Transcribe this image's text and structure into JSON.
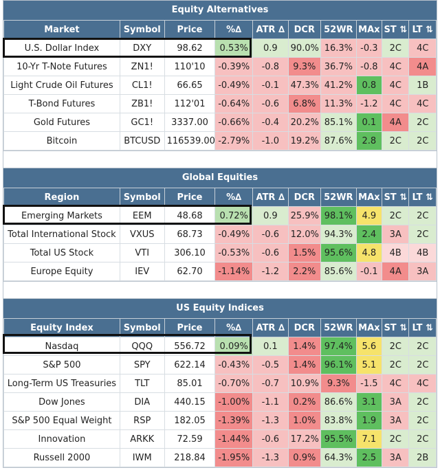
{
  "sections": [
    {
      "title": "Equity Alternatives",
      "headers": [
        "Market",
        "Symbol",
        "Price",
        "%∆",
        "ATR ∆",
        "DCR",
        "52WR",
        "MAx",
        "ST ⇅",
        "LT ⇅"
      ],
      "rows": [
        [
          [
            "U.S. Dollar Index",
            "n"
          ],
          [
            "DXY",
            "n"
          ],
          [
            "98.62",
            "n"
          ],
          [
            "0.53%",
            "g2"
          ],
          [
            "0.9",
            "g3"
          ],
          [
            "90.0%",
            "g3"
          ],
          [
            "16.3%",
            "r2"
          ],
          [
            "-0.3",
            "r2"
          ],
          [
            "2C",
            "g3"
          ],
          [
            "4C",
            "r2"
          ]
        ],
        [
          [
            "10-Yr T-Note Futures",
            "n"
          ],
          [
            "ZN1!",
            "n"
          ],
          [
            "110'10",
            "n"
          ],
          [
            "-0.39%",
            "r2"
          ],
          [
            "-0.8",
            "r2"
          ],
          [
            "9.3%",
            "r1"
          ],
          [
            "36.7%",
            "r2"
          ],
          [
            "-0.8",
            "r2"
          ],
          [
            "4C",
            "r2"
          ],
          [
            "4A",
            "r1"
          ]
        ],
        [
          [
            "Light Crude Oil Futures",
            "n"
          ],
          [
            "CL1!",
            "n"
          ],
          [
            "66.65",
            "n"
          ],
          [
            "-0.49%",
            "r2"
          ],
          [
            "-0.1",
            "r2"
          ],
          [
            "47.3%",
            "r2"
          ],
          [
            "41.2%",
            "r2"
          ],
          [
            "0.8",
            "g1"
          ],
          [
            "4C",
            "r2"
          ],
          [
            "1B",
            "g3"
          ]
        ],
        [
          [
            "T-Bond Futures",
            "n"
          ],
          [
            "ZB1!",
            "n"
          ],
          [
            "112'01",
            "n"
          ],
          [
            "-0.64%",
            "r2"
          ],
          [
            "-0.6",
            "r2"
          ],
          [
            "6.8%",
            "r1"
          ],
          [
            "11.3%",
            "r2"
          ],
          [
            "-1.2",
            "r2"
          ],
          [
            "4C",
            "r2"
          ],
          [
            "4C",
            "r2"
          ]
        ],
        [
          [
            "Gold Futures",
            "n"
          ],
          [
            "GC1!",
            "n"
          ],
          [
            "3337.00",
            "n"
          ],
          [
            "-0.66%",
            "r2"
          ],
          [
            "-0.4",
            "r2"
          ],
          [
            "20.2%",
            "r2"
          ],
          [
            "85.1%",
            "g3"
          ],
          [
            "0.1",
            "g1"
          ],
          [
            "4A",
            "r1"
          ],
          [
            "2C",
            "g3"
          ]
        ],
        [
          [
            "Bitcoin",
            "n"
          ],
          [
            "BTCUSD",
            "n"
          ],
          [
            "116539.00",
            "n"
          ],
          [
            "-2.79%",
            "r2"
          ],
          [
            "-1.0",
            "r2"
          ],
          [
            "19.2%",
            "r2"
          ],
          [
            "87.6%",
            "g3"
          ],
          [
            "2.8",
            "g1"
          ],
          [
            "2C",
            "g3"
          ],
          [
            "2C",
            "g3"
          ]
        ]
      ]
    },
    {
      "title": "Global Equities",
      "headers": [
        "Region",
        "Symbol",
        "Price",
        "%∆",
        "ATR ∆",
        "DCR",
        "52WR",
        "MAx",
        "ST ⇅",
        "LT ⇅"
      ],
      "rows": [
        [
          [
            "Emerging Markets",
            "n"
          ],
          [
            "EEM",
            "n"
          ],
          [
            "48.68",
            "n"
          ],
          [
            "0.72%",
            "g2"
          ],
          [
            "0.9",
            "g3"
          ],
          [
            "25.9%",
            "r2"
          ],
          [
            "98.1%",
            "g1"
          ],
          [
            "4.9",
            "y"
          ],
          [
            "2C",
            "g3"
          ],
          [
            "2C",
            "g3"
          ]
        ],
        [
          [
            "Total International Stock",
            "n"
          ],
          [
            "VXUS",
            "n"
          ],
          [
            "68.73",
            "n"
          ],
          [
            "-0.49%",
            "r2"
          ],
          [
            "-0.6",
            "r2"
          ],
          [
            "12.0%",
            "r2"
          ],
          [
            "94.3%",
            "g3"
          ],
          [
            "2.4",
            "g1"
          ],
          [
            "3A",
            "r2"
          ],
          [
            "2C",
            "g3"
          ]
        ],
        [
          [
            "Total US Stock",
            "n"
          ],
          [
            "VTI",
            "n"
          ],
          [
            "306.10",
            "n"
          ],
          [
            "-0.53%",
            "r2"
          ],
          [
            "-0.6",
            "r2"
          ],
          [
            "1.5%",
            "r1"
          ],
          [
            "95.6%",
            "g1"
          ],
          [
            "4.8",
            "y"
          ],
          [
            "4B",
            "r3"
          ],
          [
            "4B",
            "r3"
          ]
        ],
        [
          [
            "Europe Equity",
            "n"
          ],
          [
            "IEV",
            "n"
          ],
          [
            "62.70",
            "n"
          ],
          [
            "-1.14%",
            "r1"
          ],
          [
            "-1.2",
            "r2"
          ],
          [
            "2.2%",
            "r1"
          ],
          [
            "85.6%",
            "g3"
          ],
          [
            "-0.1",
            "r2"
          ],
          [
            "4A",
            "r1"
          ],
          [
            "3A",
            "r2"
          ]
        ]
      ]
    },
    {
      "title": "US Equity Indices",
      "headers": [
        "Equity Index",
        "Symbol",
        "Price",
        "%∆",
        "ATR ∆",
        "DCR",
        "52WR",
        "MAx",
        "ST ⇅",
        "LT ⇅"
      ],
      "rows": [
        [
          [
            "Nasdaq",
            "n"
          ],
          [
            "QQQ",
            "n"
          ],
          [
            "556.72",
            "n"
          ],
          [
            "0.09%",
            "g2"
          ],
          [
            "0.1",
            "g3"
          ],
          [
            "1.4%",
            "r1"
          ],
          [
            "97.4%",
            "g1"
          ],
          [
            "5.6",
            "y"
          ],
          [
            "2C",
            "g3"
          ],
          [
            "2C",
            "g3"
          ]
        ],
        [
          [
            "S&P 500",
            "n"
          ],
          [
            "SPY",
            "n"
          ],
          [
            "622.14",
            "n"
          ],
          [
            "-0.43%",
            "r2"
          ],
          [
            "-0.5",
            "r2"
          ],
          [
            "1.4%",
            "r1"
          ],
          [
            "96.1%",
            "g1"
          ],
          [
            "5.1",
            "y"
          ],
          [
            "2C",
            "g3"
          ],
          [
            "2C",
            "g3"
          ]
        ],
        [
          [
            "Long-Term US Treasuries",
            "n"
          ],
          [
            "TLT",
            "n"
          ],
          [
            "85.01",
            "n"
          ],
          [
            "-0.70%",
            "r2"
          ],
          [
            "-0.7",
            "r2"
          ],
          [
            "10.9%",
            "r2"
          ],
          [
            "9.3%",
            "r1"
          ],
          [
            "-1.5",
            "r2"
          ],
          [
            "4C",
            "r2"
          ],
          [
            "4C",
            "r2"
          ]
        ],
        [
          [
            "Dow Jones",
            "n"
          ],
          [
            "DIA",
            "n"
          ],
          [
            "440.15",
            "n"
          ],
          [
            "-1.00%",
            "r1"
          ],
          [
            "-1.1",
            "r2"
          ],
          [
            "0.2%",
            "r1"
          ],
          [
            "86.6%",
            "g3"
          ],
          [
            "3.1",
            "g1"
          ],
          [
            "3A",
            "r2"
          ],
          [
            "2C",
            "g3"
          ]
        ],
        [
          [
            "S&P 500 Equal Weight",
            "n"
          ],
          [
            "RSP",
            "n"
          ],
          [
            "182.05",
            "n"
          ],
          [
            "-1.39%",
            "r1"
          ],
          [
            "-1.3",
            "r2"
          ],
          [
            "1.0%",
            "r1"
          ],
          [
            "83.8%",
            "g3"
          ],
          [
            "1.9",
            "g1"
          ],
          [
            "3A",
            "r2"
          ],
          [
            "2C",
            "g3"
          ]
        ],
        [
          [
            "Innovation",
            "n"
          ],
          [
            "ARKK",
            "n"
          ],
          [
            "72.59",
            "n"
          ],
          [
            "-1.44%",
            "r1"
          ],
          [
            "-0.6",
            "r2"
          ],
          [
            "17.2%",
            "r2"
          ],
          [
            "95.5%",
            "g1"
          ],
          [
            "7.1",
            "y"
          ],
          [
            "2C",
            "g3"
          ],
          [
            "2C",
            "g3"
          ]
        ],
        [
          [
            "Russell 2000",
            "n"
          ],
          [
            "IWM",
            "n"
          ],
          [
            "218.84",
            "n"
          ],
          [
            "-1.95%",
            "r1"
          ],
          [
            "-1.3",
            "r2"
          ],
          [
            "0.9%",
            "r1"
          ],
          [
            "64.3%",
            "g3"
          ],
          [
            "2.5",
            "g1"
          ],
          [
            "3A",
            "r2"
          ],
          [
            "2B",
            "g3"
          ]
        ]
      ]
    }
  ]
}
